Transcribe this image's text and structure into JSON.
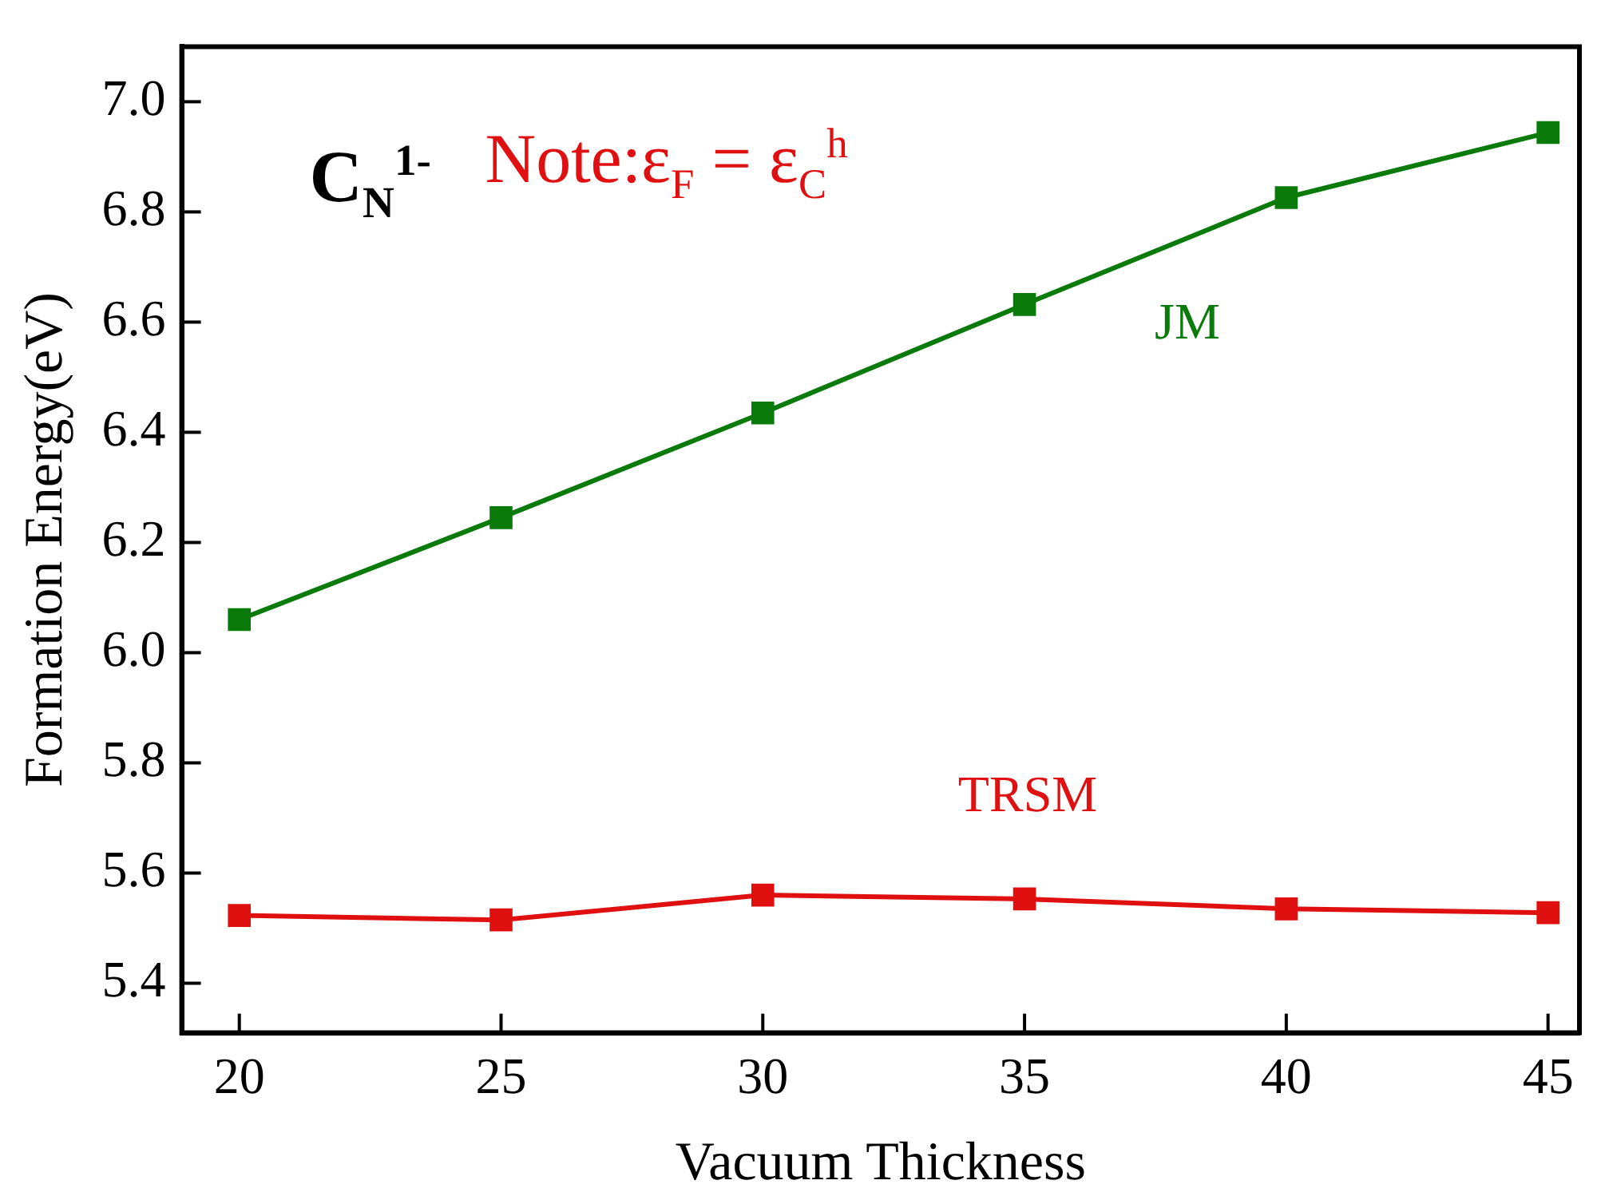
{
  "chart_data": {
    "type": "line",
    "xlabel": "Vacuum Thickness",
    "ylabel": "Formation Energy(eV)",
    "x": [
      20,
      25,
      30,
      35,
      40,
      45
    ],
    "series": [
      {
        "name": "JM",
        "color": "#0a7a0a",
        "values": [
          6.06,
          6.245,
          6.435,
          6.632,
          6.826,
          6.944
        ]
      },
      {
        "name": "TRSM",
        "color": "#e01010",
        "values": [
          5.523,
          5.515,
          5.56,
          5.553,
          5.535,
          5.528
        ]
      }
    ],
    "xlim": [
      18.9,
      45.6
    ],
    "xticks": [
      20,
      25,
      30,
      35,
      40,
      45
    ],
    "ylim": [
      5.31,
      7.1
    ],
    "yticks": [
      5.4,
      5.6,
      5.8,
      {
        "value": 6,
        "label": "6.0"
      },
      6.2,
      6.4,
      6.6,
      6.8,
      {
        "value": 7,
        "label": "7.0"
      }
    ],
    "annotations": [
      "C$_{N}$$^{1-}$",
      "Note:ε$_{F}$ = ε$_{C}$$^{h}$"
    ],
    "grid": false,
    "legend": false,
    "marker": "square",
    "line_style": "solid"
  }
}
